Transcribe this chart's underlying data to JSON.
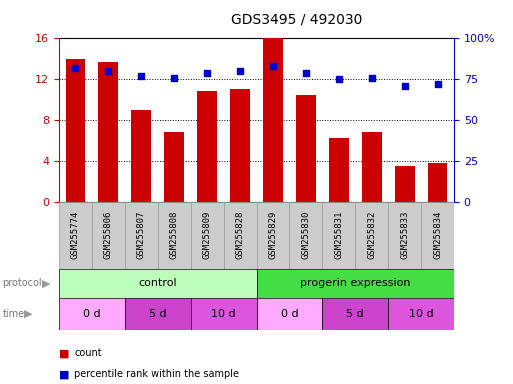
{
  "title": "GDS3495 / 492030",
  "samples": [
    "GSM255774",
    "GSM255806",
    "GSM255807",
    "GSM255808",
    "GSM255809",
    "GSM255828",
    "GSM255829",
    "GSM255830",
    "GSM255831",
    "GSM255832",
    "GSM255833",
    "GSM255834"
  ],
  "bar_values": [
    14.0,
    13.7,
    9.0,
    6.8,
    10.8,
    11.0,
    16.0,
    10.5,
    6.2,
    6.8,
    3.5,
    3.8
  ],
  "dot_values": [
    82,
    80,
    77,
    76,
    79,
    80,
    83,
    79,
    75,
    76,
    71,
    72
  ],
  "bar_color": "#cc0000",
  "dot_color": "#0000cc",
  "ylim_left": [
    0,
    16
  ],
  "ylim_right": [
    0,
    100
  ],
  "yticks_left": [
    0,
    4,
    8,
    12,
    16
  ],
  "yticks_right": [
    0,
    25,
    50,
    75,
    100
  ],
  "ytick_labels_right": [
    "0",
    "25",
    "50",
    "75",
    "100%"
  ],
  "protocol_labels": [
    "control",
    "progerin expression"
  ],
  "protocol_colors": [
    "#bbffbb",
    "#44dd44"
  ],
  "time_labels": [
    "0 d",
    "5 d",
    "10 d",
    "0 d",
    "5 d",
    "10 d"
  ],
  "time_color_list": [
    "#ffaaff",
    "#cc44cc",
    "#dd55dd",
    "#ffaaff",
    "#cc44cc",
    "#dd55dd"
  ],
  "legend_bar_label": "count",
  "legend_dot_label": "percentile rank within the sample",
  "sample_bg_color": "#cccccc",
  "sample_border_color": "#999999",
  "title_fontsize": 10,
  "tick_fontsize": 8,
  "label_fontsize": 7
}
